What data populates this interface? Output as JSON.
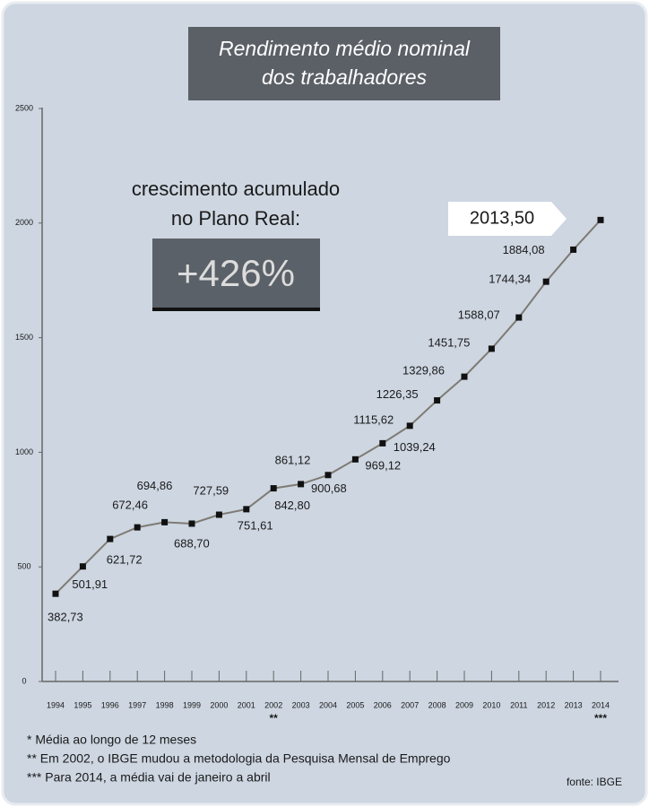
{
  "chart_data": {
    "type": "line",
    "title": [
      "Rendimento médio nominal",
      "dos trabalhadores"
    ],
    "categories": [
      "1994",
      "1995",
      "1996",
      "1997",
      "1998",
      "1999",
      "2000",
      "2001",
      "2002",
      "2003",
      "2004",
      "2005",
      "2006",
      "2007",
      "2008",
      "2009",
      "2010",
      "2011",
      "2012",
      "2013",
      "2014"
    ],
    "category_notes": [
      null,
      null,
      null,
      null,
      null,
      null,
      null,
      null,
      "**",
      null,
      null,
      null,
      null,
      null,
      null,
      null,
      null,
      null,
      null,
      null,
      "***"
    ],
    "values": [
      382.73,
      501.91,
      621.72,
      672.46,
      694.86,
      688.7,
      727.59,
      751.61,
      842.8,
      861.12,
      900.68,
      969.12,
      1039.24,
      1115.62,
      1226.35,
      1329.86,
      1451.75,
      1588.07,
      1744.34,
      1884.08,
      2013.5
    ],
    "value_labels": [
      "382,73",
      "501,91",
      "621,72",
      "672,46",
      "694,86",
      "688,70",
      "727,59",
      "751,61",
      "842,80",
      "861,12",
      "900,68",
      "969,12",
      "1039,24",
      "1115,62",
      "1226,35",
      "1329,86",
      "1451,75",
      "1588,07",
      "1744,34",
      "1884,08",
      "2013,50"
    ],
    "color": "#7e7b73",
    "marker_color": "#111111",
    "ylim": [
      0,
      2500
    ],
    "yticks": [
      0,
      500,
      1000,
      1500,
      2000,
      2500
    ],
    "callout": {
      "text": [
        "crescimento acumulado",
        "no Plano Real:"
      ],
      "highlight": "+426%"
    },
    "footnotes": [
      "* Média ao longo de 12 meses",
      "** Em 2002, o IBGE mudou a metodologia da Pesquisa Mensal de Emprego",
      "*** Para 2014, a média vai de janeiro a abril"
    ],
    "source": "fonte: IBGE"
  }
}
